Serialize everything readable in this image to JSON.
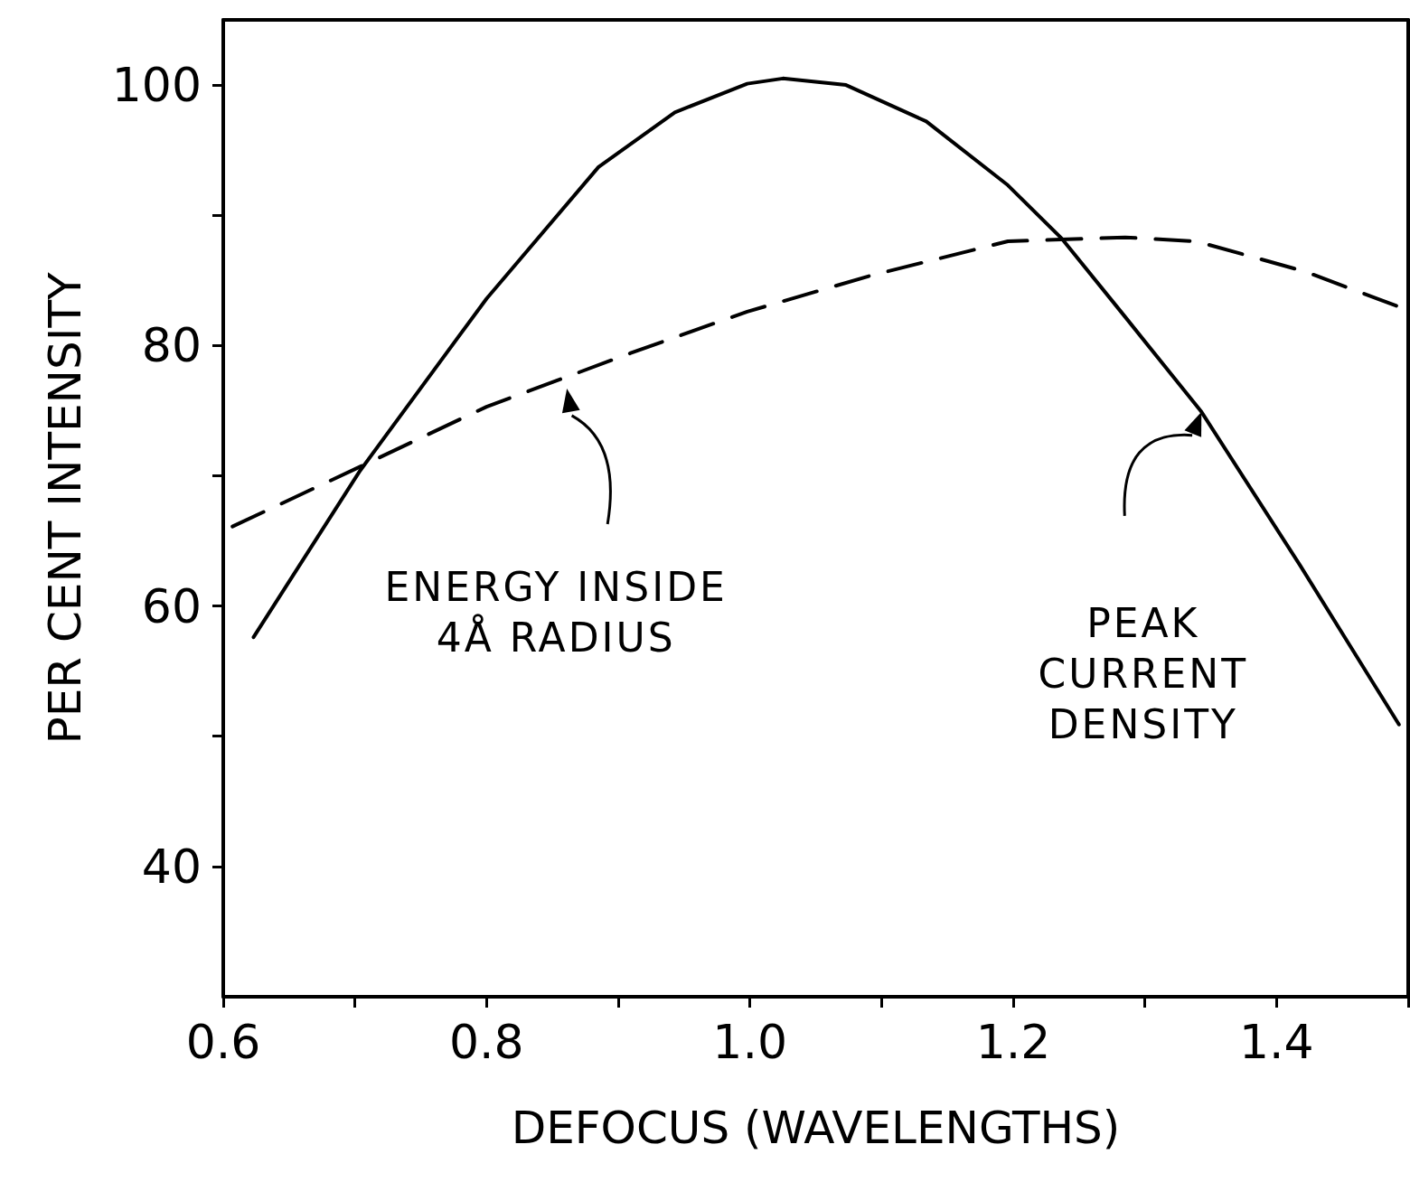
{
  "chart_data": {
    "type": "line",
    "xlabel": "DEFOCUS (WAVELENGTHS)",
    "ylabel": "PER CENT INTENSITY",
    "xlim": [
      0.6,
      1.5
    ],
    "ylim": [
      30,
      105
    ],
    "xticks": [
      0.6,
      {
        "value": 0.7,
        "label": null
      },
      0.8,
      {
        "value": 0.9,
        "label": null
      },
      {
        "value": 1,
        "label": "1.0"
      },
      {
        "value": 1.1,
        "label": null
      },
      1.2,
      {
        "value": 1.3,
        "label": null
      },
      1.4,
      {
        "value": 1.5,
        "label": null
      }
    ],
    "yticks": [
      40,
      {
        "value": 50,
        "label": null
      },
      60,
      {
        "value": 70,
        "label": null
      },
      80,
      {
        "value": 90,
        "label": null
      },
      100
    ],
    "grid": false,
    "marker": "none",
    "series": [
      {
        "color": "#000000",
        "line_style": "solid",
        "x": [
          0.623,
          0.704,
          0.8,
          0.885,
          0.943,
          0.998,
          1.025,
          1.073,
          1.134,
          1.196,
          1.237,
          1.285,
          1.343,
          1.418,
          1.493
        ],
        "values": [
          57.6,
          70.4,
          83.6,
          93.7,
          97.9,
          100.1,
          100.5,
          100.0,
          97.2,
          92.3,
          88.2,
          82.2,
          74.9,
          63.1,
          50.9
        ]
      },
      {
        "color": "#000000",
        "line_style": "dashed",
        "x": [
          0.607,
          0.704,
          0.8,
          0.909,
          0.998,
          1.093,
          1.196,
          1.285,
          1.339,
          1.421,
          1.495
        ],
        "values": [
          66.1,
          70.7,
          75.3,
          79.4,
          82.6,
          85.4,
          88.0,
          88.3,
          88.0,
          85.7,
          82.9
        ]
      }
    ],
    "annotations": [
      "ENERGY INSIDE\n4Å RADIUS",
      "PEAK\nCURRENT\nDENSITY"
    ]
  }
}
